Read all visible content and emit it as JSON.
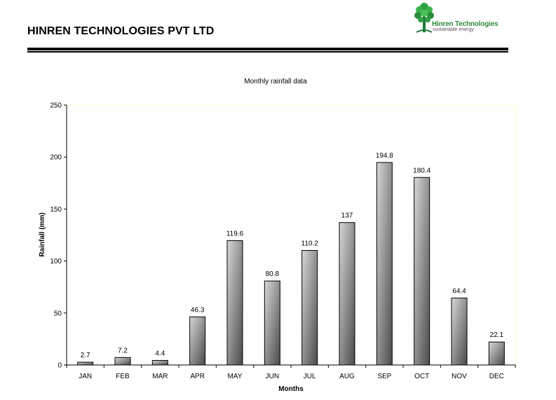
{
  "header": {
    "company_title": "HINREN TECHNOLOGIES PVT LTD",
    "logo_name": "Hinren Technologies",
    "logo_tagline": "sustainable energy",
    "logo_color": "#2e8b3e"
  },
  "chart_data": {
    "type": "bar",
    "title": "Monthly rainfall data",
    "xlabel": "Months",
    "ylabel": "Rainfall (mm)",
    "categories": [
      "JAN",
      "FEB",
      "MAR",
      "APR",
      "MAY",
      "JUN",
      "JUL",
      "AUG",
      "SEP",
      "OCT",
      "NOV",
      "DEC"
    ],
    "values": [
      2.7,
      7.2,
      4.4,
      46.3,
      119.6,
      80.8,
      110.2,
      137,
      194.8,
      180.4,
      64.4,
      22.1
    ],
    "data_labels": [
      "2.7",
      "7.2",
      "4.4",
      "46.3",
      "119.6",
      "80.8",
      "110.2",
      "137",
      "194.8",
      "180.4",
      "64.4",
      "22.1"
    ],
    "ylim": [
      0,
      250
    ],
    "yticks": [
      "0",
      "50",
      "100",
      "150",
      "200",
      "250"
    ],
    "grid": false,
    "legend": "none",
    "bar_color_light": "#d8d8d8",
    "bar_color_dark": "#4a4a4a",
    "plot_border_color": "#ffffcc"
  }
}
